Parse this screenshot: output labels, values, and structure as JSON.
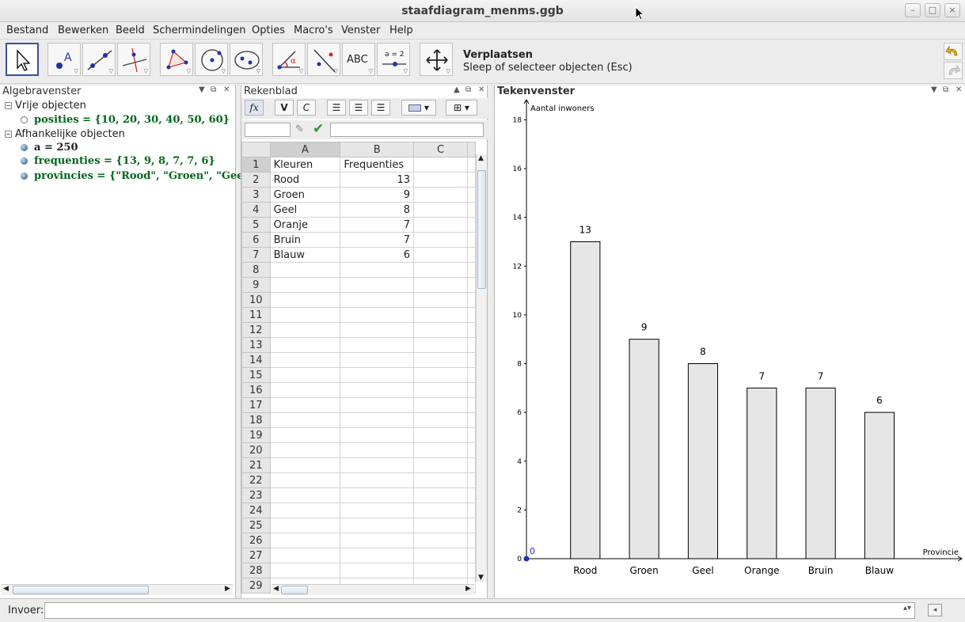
{
  "window": {
    "title": "staafdiagram_menms.ggb"
  },
  "menu": [
    "Bestand",
    "Bewerken",
    "Beeld",
    "Schermindelingen",
    "Opties",
    "Macro's",
    "Venster",
    "Help"
  ],
  "toolbar": {
    "active_tool_name": "Verplaatsen",
    "active_tool_help": "Sleep of selecteer objecten (Esc)",
    "tools": [
      "move-tool-icon",
      "point-tool-icon",
      "line-tool-icon",
      "perpendicular-line-tool-icon",
      "polygon-tool-icon",
      "circle-tool-icon",
      "ellipse-tool-icon",
      "angle-tool-icon",
      "reflect-tool-icon",
      "text-tool-icon",
      "slider-tool-icon",
      "move-graphics-view-icon"
    ],
    "text_tool_label": "ABC",
    "slider_tool_label": "a = 2"
  },
  "algebra": {
    "title": "Algebravenster",
    "free_label": "Vrije objecten",
    "dependent_label": "Afhankelijke objecten",
    "free": [
      {
        "text": "posities = {10, 20, 30, 40, 50, 60}"
      }
    ],
    "dependent": [
      {
        "text": "a = 250"
      },
      {
        "text": "frequenties = {13, 9, 8, 7, 7, 6}"
      },
      {
        "text": "provincies = {\"Rood\", \"Groen\", \"Gee"
      }
    ]
  },
  "spreadsheet": {
    "title": "Rekenblad",
    "bold_label": "V",
    "italic_label": "C",
    "fx_label": "fx",
    "columns": [
      "A",
      "B",
      "C"
    ],
    "rows": [
      [
        "Kleuren",
        "Frequenties",
        ""
      ],
      [
        "Rood",
        "13",
        ""
      ],
      [
        "Groen",
        "9",
        ""
      ],
      [
        "Geel",
        "8",
        ""
      ],
      [
        "Oranje",
        "7",
        ""
      ],
      [
        "Bruin",
        "7",
        ""
      ],
      [
        "Blauw",
        "6",
        ""
      ],
      [
        "",
        "",
        ""
      ],
      [
        "",
        "",
        ""
      ],
      [
        "",
        "",
        ""
      ],
      [
        "",
        "",
        ""
      ],
      [
        "",
        "",
        ""
      ],
      [
        "",
        "",
        ""
      ],
      [
        "",
        "",
        ""
      ],
      [
        "",
        "",
        ""
      ],
      [
        "",
        "",
        ""
      ],
      [
        "",
        "",
        ""
      ],
      [
        "",
        "",
        ""
      ],
      [
        "",
        "",
        ""
      ],
      [
        "",
        "",
        ""
      ],
      [
        "",
        "",
        ""
      ],
      [
        "",
        "",
        ""
      ],
      [
        "",
        "",
        ""
      ],
      [
        "",
        "",
        ""
      ],
      [
        "",
        "",
        ""
      ],
      [
        "",
        "",
        ""
      ],
      [
        "",
        "",
        ""
      ],
      [
        "",
        "",
        ""
      ],
      [
        "",
        "",
        ""
      ]
    ],
    "row_numbers": [
      "1",
      "2",
      "3",
      "4",
      "5",
      "6",
      "7",
      "8",
      "9",
      "10",
      "11",
      "12",
      "13",
      "14",
      "15",
      "16",
      "17",
      "18",
      "19",
      "20",
      "21",
      "22",
      "23",
      "24",
      "25",
      "26",
      "27",
      "28",
      "29"
    ]
  },
  "graphics": {
    "title": "Tekenvenster",
    "origin_label": "0"
  },
  "chart_data": {
    "type": "bar",
    "categories": [
      "Rood",
      "Groen",
      "Geel",
      "Orange",
      "Bruin",
      "Blauw"
    ],
    "values": [
      13,
      9,
      8,
      7,
      7,
      6
    ],
    "value_labels": [
      "13",
      "9",
      "8",
      "7",
      "7",
      "6"
    ],
    "x_positions": [
      10,
      20,
      30,
      40,
      50,
      60
    ],
    "bar_width": 5,
    "xlim": [
      0,
      74
    ],
    "ylim": [
      0,
      18.5
    ],
    "yticks": [
      0,
      2,
      4,
      6,
      8,
      10,
      12,
      14,
      16,
      18
    ],
    "ytick_labels": [
      "0",
      "2",
      "4",
      "6",
      "8",
      "10",
      "12",
      "14",
      "16",
      "18"
    ],
    "xlabel": "Provincie",
    "ylabel": "Aantal inwoners",
    "bar_color": "#e6e6e6",
    "bar_stroke": "#000000"
  },
  "input": {
    "label": "Invoer:",
    "value": ""
  }
}
